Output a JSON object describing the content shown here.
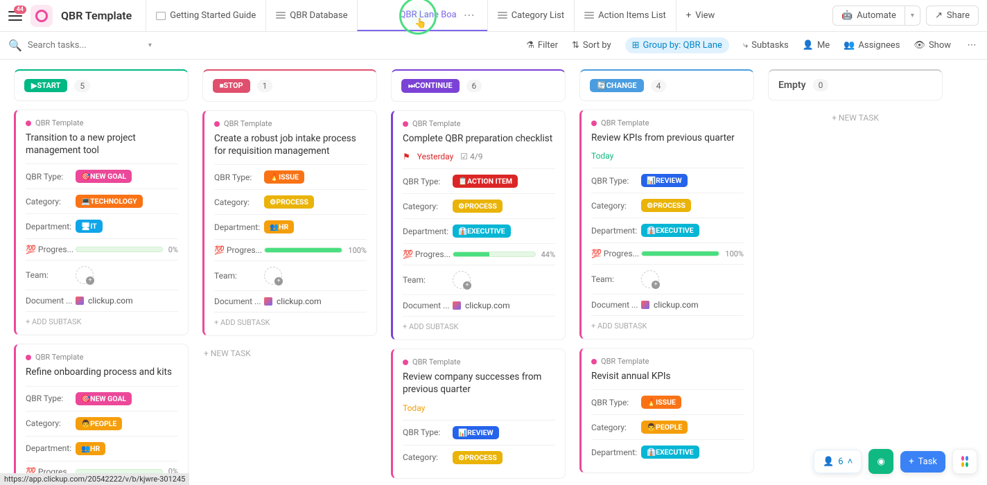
{
  "header": {
    "badge_count": "44",
    "title": "QBR Template",
    "tabs": [
      {
        "label": "Getting Started Guide",
        "type": "doc"
      },
      {
        "label": "QBR Database",
        "type": "list"
      },
      {
        "label": "QBR Lane Boa",
        "type": "board",
        "active": true
      },
      {
        "label": "Category List",
        "type": "list"
      },
      {
        "label": "Action Items List",
        "type": "list"
      },
      {
        "label": "View",
        "type": "add"
      }
    ],
    "automate": "Automate",
    "share": "Share"
  },
  "toolbar": {
    "search_placeholder": "Search tasks...",
    "filter": "Filter",
    "sort": "Sort by",
    "groupby": "Group by: QBR Lane",
    "subtasks": "Subtasks",
    "me": "Me",
    "assignees": "Assignees",
    "show": "Show"
  },
  "columns": [
    {
      "pill": "▶START",
      "pill_color": "#00b884",
      "top_color": "#00b884",
      "count": "5"
    },
    {
      "pill": "⏹STOP",
      "pill_color": "#e04f6e",
      "top_color": "#e04f6e",
      "count": "1"
    },
    {
      "pill": "⏭CONTINUE",
      "pill_color": "#7b42d6",
      "top_color": "#7b42d6",
      "count": "6"
    },
    {
      "pill": "🔄CHANGE",
      "pill_color": "#4a9de0",
      "top_color": "#4a9de0",
      "count": "4"
    },
    {
      "pill": "Empty",
      "pill_color": "",
      "top_color": "#ccc",
      "count": "0",
      "empty": true
    }
  ],
  "list_label": "QBR Template",
  "field_labels": {
    "qbr_type": "QBR Type:",
    "category": "Category:",
    "department": "Department:",
    "progress": "💯 Progres...",
    "progress_full": "💯 Progress...",
    "team": "Team:",
    "document": "Document ..."
  },
  "tags": {
    "new_goal": {
      "text": "🎯NEW GOAL",
      "color": "#ec4899"
    },
    "technology": {
      "text": "💻TECHNOLOGY",
      "color": "#f97316"
    },
    "it": {
      "text": "🖥IT",
      "color": "#0ea5e9"
    },
    "issue": {
      "text": "🔥ISSUE",
      "color": "#f97316"
    },
    "process": {
      "text": "⚙PROCESS",
      "color": "#eab308"
    },
    "hr": {
      "text": "👥HR",
      "color": "#f59e0b"
    },
    "action_item": {
      "text": "📋ACTION ITEM",
      "color": "#dc2626"
    },
    "executive": {
      "text": "👔EXECUTIVE",
      "color": "#06b6d4"
    },
    "review": {
      "text": "📊REVIEW",
      "color": "#2563eb"
    },
    "people": {
      "text": "👨PEOPLE",
      "color": "#f59e0b"
    }
  },
  "cards": {
    "col0": [
      {
        "title": "Transition to a new project management tool",
        "qbr_type": "new_goal",
        "category": "technology",
        "department": "it",
        "progress": 0,
        "doc": "clickup.com",
        "border": "#ec4899"
      },
      {
        "title": "Refine onboarding process and kits",
        "qbr_type": "new_goal",
        "category": "people",
        "department": "hr",
        "progress": 0,
        "border": "#ec4899",
        "partial": true
      }
    ],
    "col1": [
      {
        "title": "Create a robust job intake process for requisition management",
        "qbr_type": "issue",
        "category": "process",
        "department": "hr",
        "progress": 100,
        "doc": "clickup.com",
        "border": "#ec4899"
      }
    ],
    "col2": [
      {
        "title": "Complete QBR preparation checklist",
        "date": "Yesterday",
        "date_class": "date-red",
        "flag": true,
        "checklist": "4/9",
        "qbr_type": "action_item",
        "category": "process",
        "department": "executive",
        "progress": 44,
        "doc": "clickup.com",
        "border": "#7b42d6"
      },
      {
        "title": "Review company successes from previous quarter",
        "date": "Today",
        "date_class": "date-orange",
        "qbr_type": "review",
        "category": "process",
        "border": "#ec4899",
        "partial": true
      }
    ],
    "col3": [
      {
        "title": "Review KPIs from previous quarter",
        "date": "Today",
        "date_class": "date-green",
        "qbr_type": "review",
        "category": "process",
        "department": "executive",
        "progress": 100,
        "doc": "clickup.com",
        "border": "#ec4899"
      },
      {
        "title": "Revisit annual KPIs",
        "qbr_type": "issue",
        "category": "people",
        "department": "executive",
        "border": "#ec4899",
        "partial": true
      }
    ]
  },
  "actions": {
    "add_subtask": "+ ADD SUBTASK",
    "new_task": "+ NEW TASK"
  },
  "status_url": "https://app.clickup.com/20542222/v/b/kjwre-301245",
  "floating": {
    "people_count": "6",
    "task_label": "Task"
  }
}
